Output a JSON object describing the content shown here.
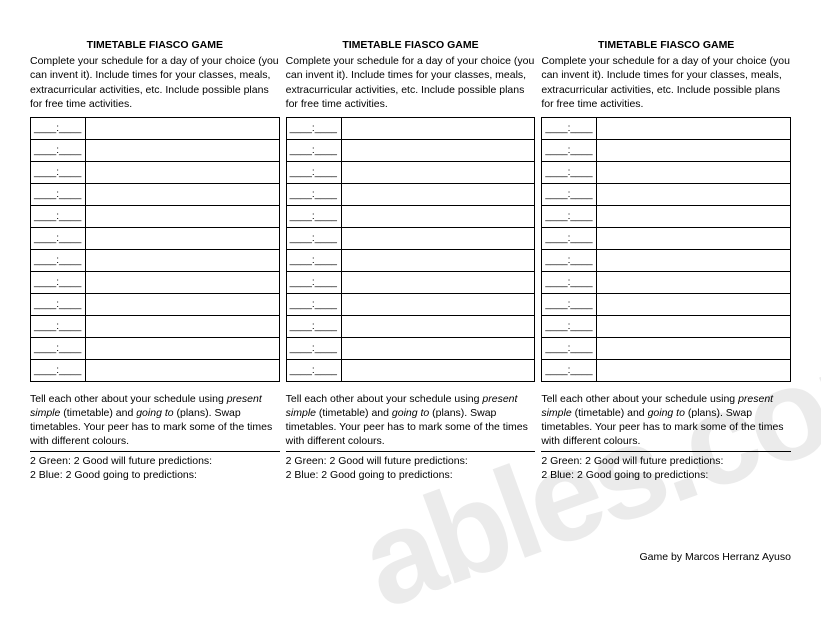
{
  "watermark": "ables.com",
  "credit": "Game by Marcos Herranz Ayuso",
  "columns": [
    {
      "title": "TIMETABLE FIASCO GAME",
      "instructions": "Complete your schedule for a day of your choice (you can invent it). Include times for your classes, meals, extracurricular activities, etc. Include possible plans for free time activities.",
      "time_placeholder": "____:____",
      "row_count": 12,
      "below_line1_a": "Tell each other about your schedule using ",
      "below_line1_b": "present simple",
      "below_line1_c": " (timetable) and ",
      "below_line1_d": "going to",
      "below_line1_e": " (plans). Swap timetables. Your peer has to mark some of the times with different colours.",
      "green": "2 Green: 2 Good will future predictions:",
      "blue": "2 Blue: 2 Good going to predictions:"
    },
    {
      "title": "TIMETABLE FIASCO GAME",
      "instructions": "Complete your schedule for a day of your choice (you can invent it). Include times for your classes, meals, extracurricular activities, etc. Include possible plans for free time activities.",
      "time_placeholder": "____:____",
      "row_count": 12,
      "below_line1_a": "Tell each other about your schedule using ",
      "below_line1_b": "present simple",
      "below_line1_c": " (timetable) and ",
      "below_line1_d": "going to",
      "below_line1_e": " (plans). Swap timetables. Your peer has to mark some of the times with different colours.",
      "green": "2 Green: 2 Good will future predictions:",
      "blue": "2 Blue: 2 Good going to predictions:"
    },
    {
      "title": "TIMETABLE FIASCO GAME",
      "instructions": "Complete your schedule for a day of your choice (you can invent it). Include times for your classes, meals, extracurricular activities, etc. Include possible plans for free time activities.",
      "time_placeholder": "____:____",
      "row_count": 12,
      "below_line1_a": "Tell each other about your schedule using ",
      "below_line1_b": "present simple",
      "below_line1_c": " (timetable) and ",
      "below_line1_d": "going to",
      "below_line1_e": " (plans). Swap timetables. Your peer has to mark some of the times with different colours.",
      "green": "2 Green: 2 Good will future predictions:",
      "blue": "2 Blue: 2 Good going to predictions:"
    }
  ]
}
